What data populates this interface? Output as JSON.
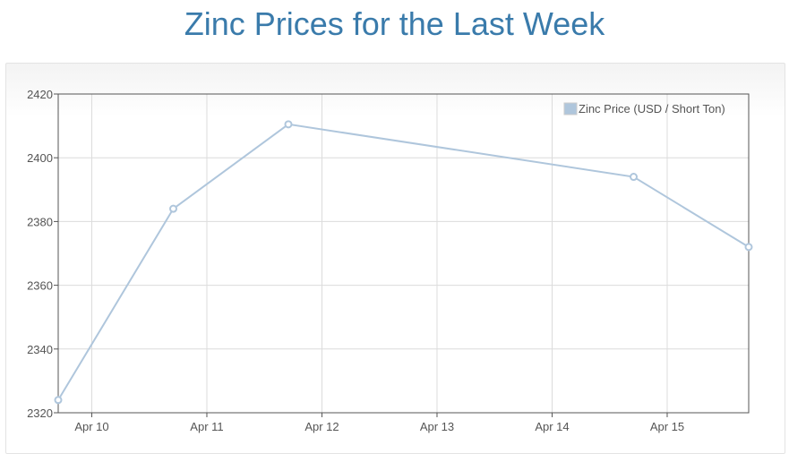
{
  "page": {
    "title": "Zinc Prices for the Last Week"
  },
  "chart_data": {
    "type": "line",
    "title": "Zinc Prices for the Last Week",
    "xlabel": "",
    "ylabel": "",
    "x_ticks": [
      "Apr 10",
      "Apr 11",
      "Apr 12",
      "Apr 13",
      "Apr 14",
      "Apr 15"
    ],
    "xlim": [
      "Apr 9, 17:00",
      "Apr 15, 17:00"
    ],
    "ylim": [
      2320,
      2420
    ],
    "y_ticks": [
      2320,
      2340,
      2360,
      2380,
      2400,
      2420
    ],
    "grid": true,
    "legend": "top-right",
    "series": [
      {
        "name": "Zinc Price (USD / Short Ton)",
        "color": "#afc6dc",
        "points": [
          {
            "x": "Apr 9, 17:00",
            "y": 2324
          },
          {
            "x": "Apr 10, 17:00",
            "y": 2384
          },
          {
            "x": "Apr 11, 17:00",
            "y": 2410.5
          },
          {
            "x": "Apr 14, 17:00",
            "y": 2394
          },
          {
            "x": "Apr 15, 17:00",
            "y": 2372
          }
        ]
      }
    ]
  }
}
